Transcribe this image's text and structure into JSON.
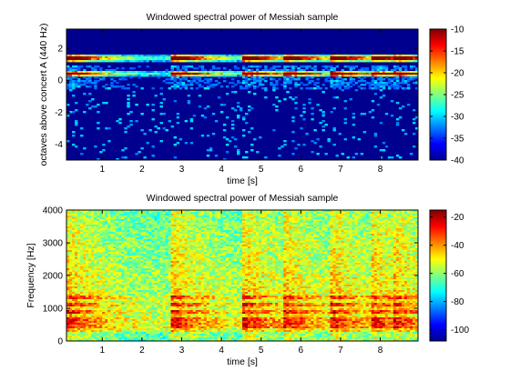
{
  "chart_data": [
    {
      "type": "heatmap",
      "title": "Windowed spectral power of Messiah sample",
      "xlabel": "time [s]",
      "ylabel": "octaves above concert A (440 Hz)",
      "xlim": [
        0.1,
        8.95
      ],
      "ylim": [
        -5.0,
        3.2
      ],
      "xticks": [
        "1",
        "2",
        "3",
        "4",
        "5",
        "6",
        "7",
        "8"
      ],
      "yticks": [
        "-4",
        "-2",
        "0",
        "2"
      ],
      "colorbar": {
        "min": -40,
        "max": -10,
        "ticks": [
          "-10",
          "-15",
          "-20",
          "-25",
          "-30",
          "-35",
          "-40"
        ]
      },
      "colormap": "jet",
      "note_onsets_s": [
        0.1,
        2.75,
        4.55,
        5.55,
        6.75,
        7.75,
        8.3
      ],
      "bright_bands": [
        0.33,
        0.45,
        1.25,
        1.35,
        1.5
      ]
    },
    {
      "type": "heatmap",
      "title": "Windowed spectral power of Messiah sample",
      "xlabel": "time [s]",
      "ylabel": "Frequency [Hz]",
      "xlim": [
        0.1,
        8.95
      ],
      "ylim": [
        0,
        4000
      ],
      "xticks": [
        "1",
        "2",
        "3",
        "4",
        "5",
        "6",
        "7",
        "8"
      ],
      "yticks": [
        "0",
        "1000",
        "2000",
        "3000",
        "4000"
      ],
      "colorbar": {
        "min": -108,
        "max": -15,
        "ticks": [
          "-20",
          "-40",
          "-60",
          "-80",
          "-100"
        ]
      },
      "colormap": "jet",
      "note_onsets_s": [
        0.1,
        2.75,
        4.55,
        5.55,
        6.75,
        7.75,
        8.3
      ],
      "bright_bands_hz": [
        440,
        550,
        660,
        880,
        1100,
        1320
      ]
    }
  ]
}
